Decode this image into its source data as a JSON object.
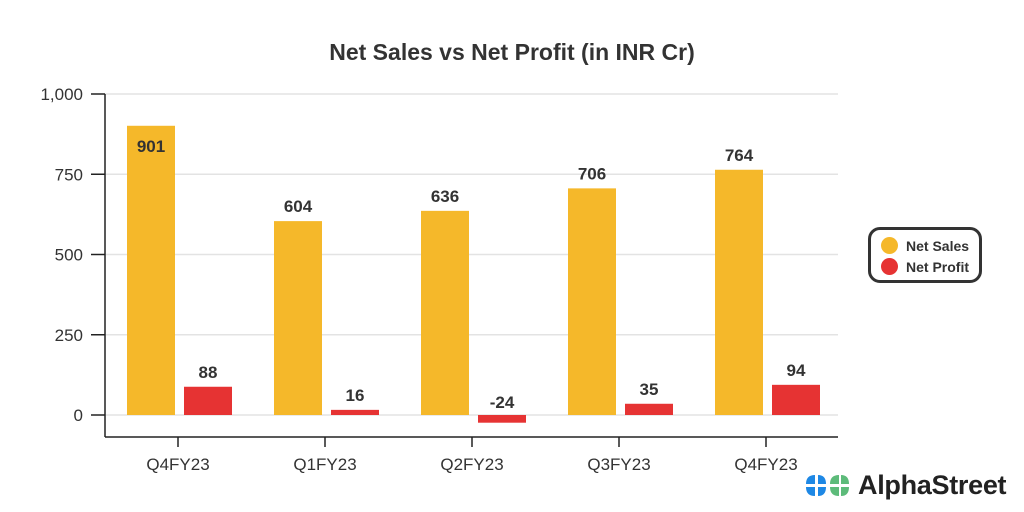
{
  "chart_data": {
    "type": "bar",
    "title": "Net Sales vs Net Profit (in INR Cr)",
    "categories": [
      "Q4FY23",
      "Q1FY23",
      "Q2FY23",
      "Q3FY23",
      "Q4FY23"
    ],
    "series": [
      {
        "name": "Net Sales",
        "color": "#F5B82A",
        "values": [
          901,
          604,
          636,
          706,
          764
        ]
      },
      {
        "name": "Net Profit",
        "color": "#E63333",
        "values": [
          88,
          16,
          -24,
          35,
          94
        ]
      }
    ],
    "yticks": [
      0,
      250,
      500,
      750,
      1000
    ],
    "ytick_labels": [
      "0",
      "250",
      "500",
      "750",
      "1,000"
    ],
    "ylim": [
      -70,
      1000
    ],
    "xlabel": "",
    "ylabel": "",
    "grid": true,
    "legend_position": "right"
  },
  "brand": {
    "name": "AlphaStreet"
  }
}
